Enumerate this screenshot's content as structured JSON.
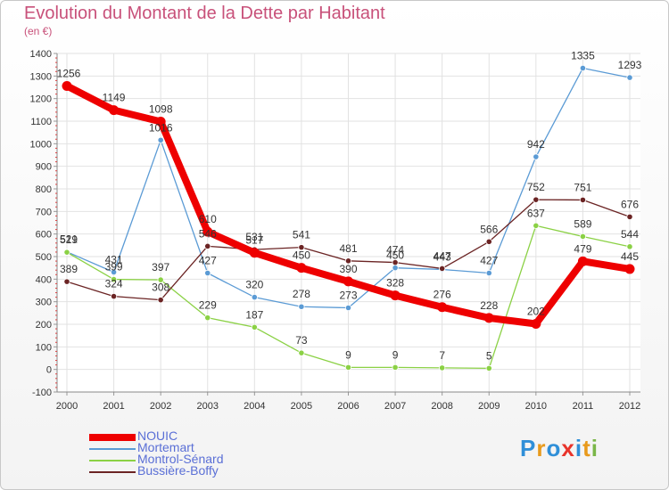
{
  "chart_data": {
    "type": "line",
    "title": "Evolution du Montant de la Dette par Habitant",
    "subtitle": "(en €)",
    "x": [
      "2000",
      "2001",
      "2002",
      "2003",
      "2004",
      "2005",
      "2006",
      "2007",
      "2008",
      "2009",
      "2010",
      "2011",
      "2012"
    ],
    "ylim": [
      -100,
      1400
    ],
    "yticks": [
      -100,
      0,
      100,
      200,
      300,
      400,
      500,
      600,
      700,
      800,
      900,
      1000,
      1100,
      1200,
      1300,
      1400
    ],
    "grid": true,
    "legend": "bottom-left",
    "series": [
      {
        "name": "NOUIC",
        "color": "#ee0000",
        "values": [
          1256,
          1149,
          1098,
          610,
          517,
          450,
          390,
          328,
          276,
          228,
          202,
          479,
          445
        ]
      },
      {
        "name": "Mortemart",
        "color": "#5b9bd5",
        "values": [
          521,
          431,
          1016,
          427,
          320,
          278,
          273,
          450,
          443,
          427,
          942,
          1335,
          1293
        ]
      },
      {
        "name": "Montrol-Sénard",
        "color": "#8bd145",
        "values": [
          519,
          399,
          397,
          229,
          187,
          73,
          9,
          9,
          7,
          5,
          637,
          589,
          544
        ]
      },
      {
        "name": "Bussière-Boffy",
        "color": "#6b2424",
        "values": [
          389,
          324,
          308,
          546,
          531,
          541,
          481,
          474,
          447,
          566,
          752,
          751,
          676
        ]
      }
    ]
  },
  "logo": {
    "text": "Proxiti",
    "colors": [
      "#2f8fd8",
      "#e89a1c",
      "#2f8fd8",
      "#e8342b",
      "#2f8fd8",
      "#e89a1c",
      "#7ab648"
    ]
  }
}
